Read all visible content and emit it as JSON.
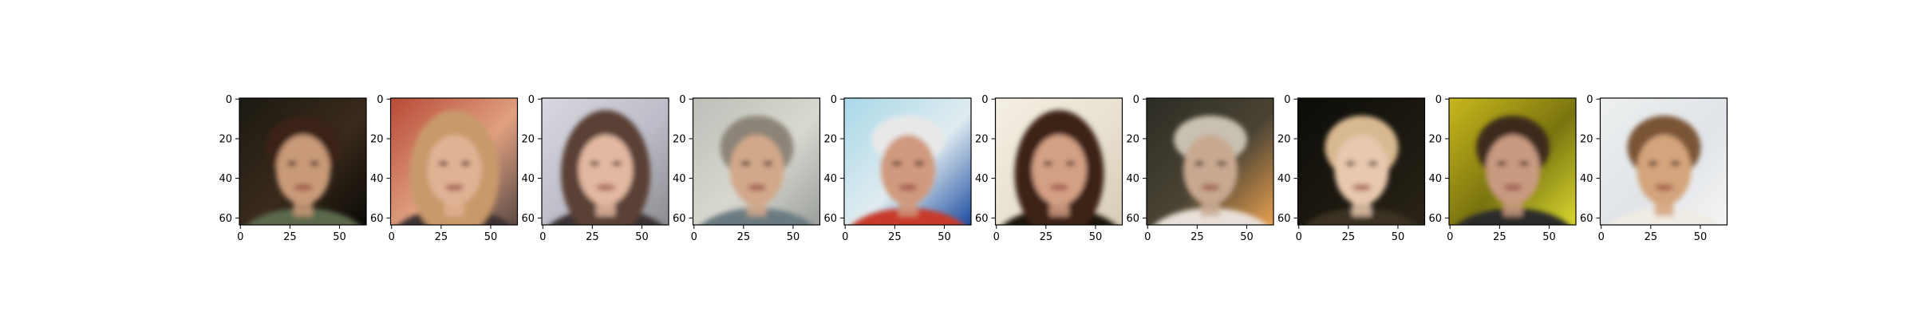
{
  "figure": {
    "background": "#ffffff",
    "panel_count": 10,
    "panels": [
      {
        "bg": [
          "#1b1a12",
          "#3a2a1c",
          "#0a0a06"
        ],
        "face": "#c89a78",
        "hair": "#3a2414",
        "accent": "#5c6a4c",
        "hair_style": "short"
      },
      {
        "bg": [
          "#b84a36",
          "#e0a080",
          "#5a4a44"
        ],
        "face": "#e0b294",
        "hair": "#c89a6a",
        "accent": "#3c3030",
        "hair_style": "long"
      },
      {
        "bg": [
          "#d8d8e0",
          "#bcbcc8",
          "#8c8c90"
        ],
        "face": "#e2b8a0",
        "hair": "#5a4034",
        "accent": "#3a3030",
        "hair_style": "long"
      },
      {
        "bg": [
          "#bcc0b8",
          "#d8d8d0",
          "#9ca09c"
        ],
        "face": "#d2a88a",
        "hair": "#8c8478",
        "accent": "#6a7a80",
        "hair_style": "short"
      },
      {
        "bg": [
          "#a8d8e8",
          "#e0ecf0",
          "#1c4ca0"
        ],
        "face": "#d09a7e",
        "hair": "#e8e8e8",
        "accent": "#c83a2a",
        "hair_style": "cap"
      },
      {
        "bg": [
          "#f4f0e4",
          "#e8e0d0",
          "#d8ccb8"
        ],
        "face": "#d4a084",
        "hair": "#3c2418",
        "accent": "#1a1210",
        "hair_style": "long"
      },
      {
        "bg": [
          "#2c2c24",
          "#4a4434",
          "#e8a050"
        ],
        "face": "#c8a890",
        "hair": "#c8c0b0",
        "accent": "#e8e0d8",
        "hair_style": "cap"
      },
      {
        "bg": [
          "#0c0c08",
          "#1c1810",
          "#2a2418"
        ],
        "face": "#e8c8ae",
        "hair": "#d8b890",
        "accent": "#3a3020",
        "hair_style": "short"
      },
      {
        "bg": [
          "#c8b81c",
          "#7a7410",
          "#d8d830"
        ],
        "face": "#c89a80",
        "hair": "#3c2c1c",
        "accent": "#2c2c2c",
        "hair_style": "short"
      },
      {
        "bg": [
          "#eef0f0",
          "#e0e4e8",
          "#f4f4f4"
        ],
        "face": "#d4a47c",
        "hair": "#7a5434",
        "accent": "#f0ece4",
        "hair_style": "short"
      }
    ],
    "axes": {
      "x_ticks": [
        "0",
        "25",
        "50"
      ],
      "y_ticks": [
        "0",
        "20",
        "40",
        "60"
      ],
      "tick_color": "#000000",
      "spine_color": "#000000"
    }
  }
}
